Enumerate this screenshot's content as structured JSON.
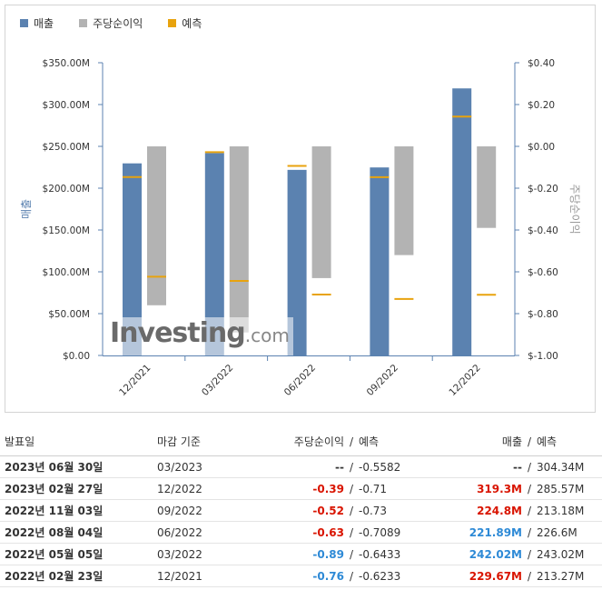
{
  "colors": {
    "revenue": "#5b82b0",
    "eps": "#b3b3b3",
    "forecast": "#e8a30e",
    "axis": "#5b82b0",
    "text": "#333333",
    "negative": "#d91400",
    "positive": "#2e8ad6"
  },
  "legend": [
    {
      "label": "매출",
      "color": "#5b82b0"
    },
    {
      "label": "주당순이익",
      "color": "#b3b3b3"
    },
    {
      "label": "예측",
      "color": "#e8a30e"
    }
  ],
  "watermark": {
    "brand": "Investing",
    "domain": ".com"
  },
  "chart_data": {
    "type": "bar",
    "categories": [
      "12/2021",
      "03/2022",
      "06/2022",
      "09/2022",
      "12/2022"
    ],
    "series": [
      {
        "name": "매출",
        "axis": "left",
        "values": [
          229.67,
          242.02,
          221.89,
          224.8,
          319.3
        ]
      },
      {
        "name": "주당순이익",
        "axis": "right",
        "values": [
          -0.76,
          -0.89,
          -0.63,
          -0.52,
          -0.39
        ]
      }
    ],
    "forecast": {
      "name": "예측",
      "revenue": [
        213.27,
        243.02,
        226.6,
        213.18,
        285.57
      ],
      "eps": [
        -0.6233,
        -0.6433,
        -0.7089,
        -0.73,
        -0.71
      ]
    },
    "left_axis": {
      "label": "매출",
      "range": [
        0,
        350
      ],
      "ticks": [
        "$0.00",
        "$50.00M",
        "$100.00M",
        "$150.00M",
        "$200.00M",
        "$250.00M",
        "$300.00M",
        "$350.00M"
      ]
    },
    "right_axis": {
      "label": "주당순이익",
      "range": [
        -1.0,
        0.4
      ],
      "ticks": [
        "$-1.00",
        "$-0.80",
        "$-0.60",
        "$-0.40",
        "$-0.20",
        "$0.00",
        "$0.20",
        "$0.40"
      ]
    },
    "grid": false
  },
  "table": {
    "headers": {
      "date": "발표일",
      "period": "마감 기준",
      "eps": "주당순이익",
      "eps_forecast": "예측",
      "revenue": "매출",
      "revenue_forecast": "예측",
      "slash": "/"
    },
    "rows": [
      {
        "date": "2023년 06월 30일",
        "period": "03/2023",
        "eps": "--",
        "eps_class": "neutral",
        "eps_forecast": "-0.5582",
        "revenue": "--",
        "rev_class": "neutral",
        "revenue_forecast": "304.34M"
      },
      {
        "date": "2023년 02월 27일",
        "period": "12/2022",
        "eps": "-0.39",
        "eps_class": "neg",
        "eps_forecast": "-0.71",
        "revenue": "319.3M",
        "rev_class": "neg",
        "revenue_forecast": "285.57M"
      },
      {
        "date": "2022년 11월 03일",
        "period": "09/2022",
        "eps": "-0.52",
        "eps_class": "neg",
        "eps_forecast": "-0.73",
        "revenue": "224.8M",
        "rev_class": "neg",
        "revenue_forecast": "213.18M"
      },
      {
        "date": "2022년 08월 04일",
        "period": "06/2022",
        "eps": "-0.63",
        "eps_class": "neg",
        "eps_forecast": "-0.7089",
        "revenue": "221.89M",
        "rev_class": "pos",
        "revenue_forecast": "226.6M"
      },
      {
        "date": "2022년 05월 05일",
        "period": "03/2022",
        "eps": "-0.89",
        "eps_class": "pos",
        "eps_forecast": "-0.6433",
        "revenue": "242.02M",
        "rev_class": "pos",
        "revenue_forecast": "243.02M"
      },
      {
        "date": "2022년 02월 23일",
        "period": "12/2021",
        "eps": "-0.76",
        "eps_class": "pos",
        "eps_forecast": "-0.6233",
        "revenue": "229.67M",
        "rev_class": "neg",
        "revenue_forecast": "213.27M"
      }
    ]
  }
}
